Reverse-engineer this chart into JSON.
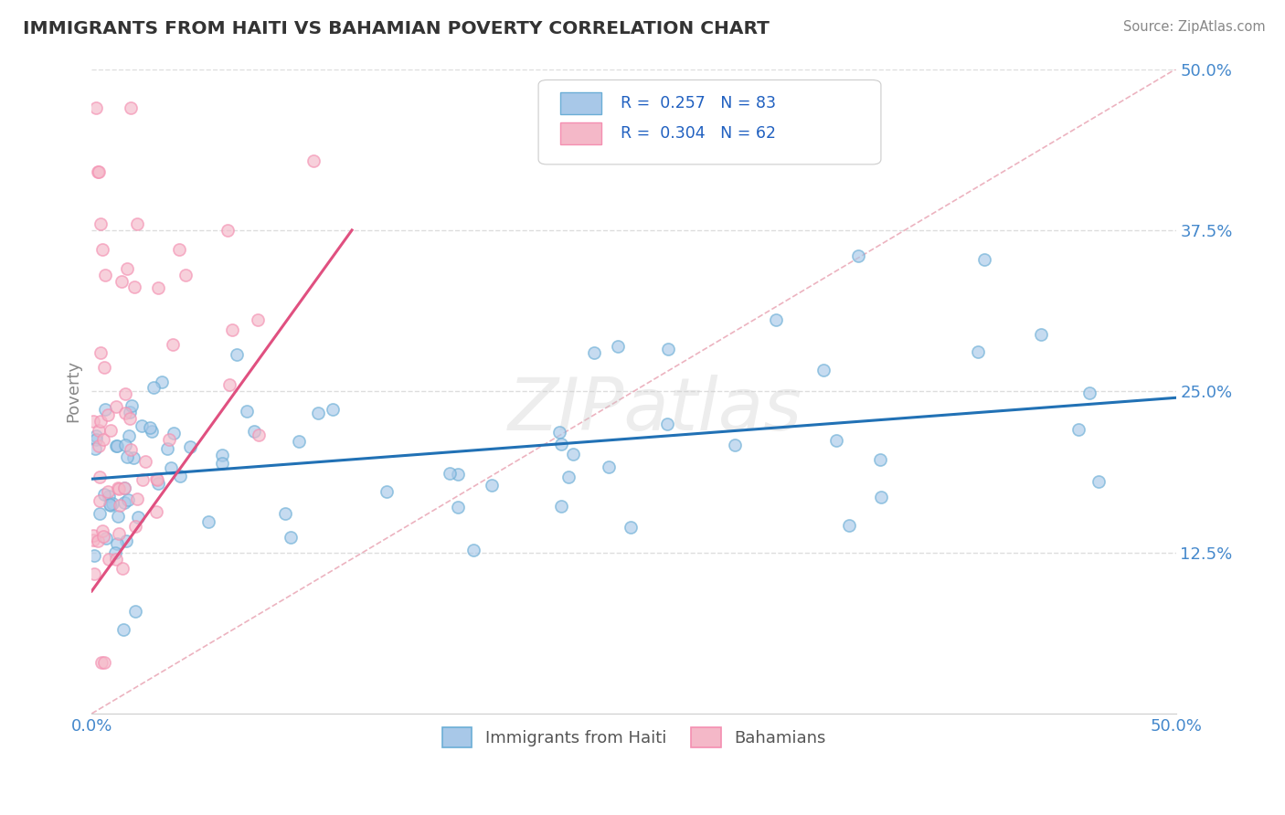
{
  "title": "IMMIGRANTS FROM HAITI VS BAHAMIAN POVERTY CORRELATION CHART",
  "source": "Source: ZipAtlas.com",
  "ylabel": "Poverty",
  "xlim": [
    0.0,
    0.5
  ],
  "ylim": [
    0.0,
    0.5
  ],
  "xtick_positions": [
    0.0,
    0.5
  ],
  "xtick_labels": [
    "0.0%",
    "50.0%"
  ],
  "ytick_values": [
    0.125,
    0.25,
    0.375,
    0.5
  ],
  "ytick_labels": [
    "12.5%",
    "25.0%",
    "37.5%",
    "50.0%"
  ],
  "legend_r1": "0.257",
  "legend_n1": "83",
  "legend_r2": "0.304",
  "legend_n2": "62",
  "blue_fill": "#a8c8e8",
  "blue_edge": "#6baed6",
  "blue_line": "#2171b5",
  "pink_fill": "#f4b8c8",
  "pink_edge": "#f48fb1",
  "pink_line": "#e05080",
  "diag_color": "#e8a0b0",
  "grid_color": "#dddddd",
  "background": "#ffffff",
  "title_color": "#333333",
  "watermark_color": "#cccccc",
  "axis_label_color": "#4488cc",
  "legend_text_color": "#333333",
  "legend_val_color": "#2060c0"
}
